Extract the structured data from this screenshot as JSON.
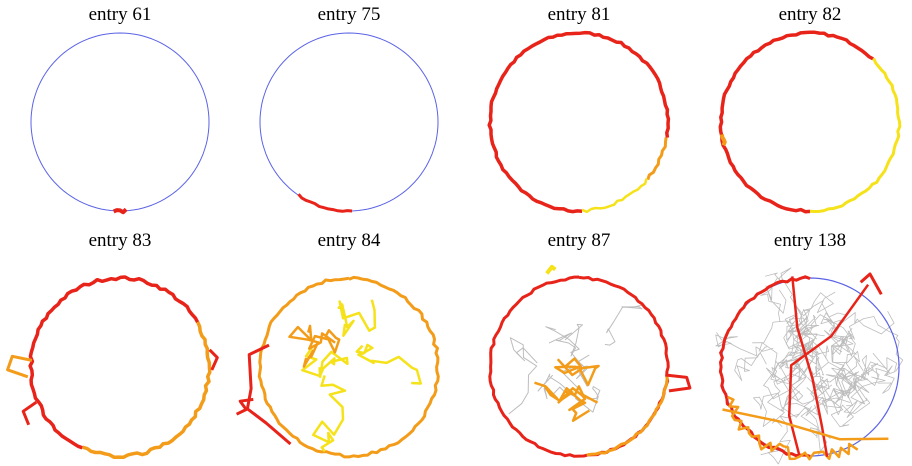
{
  "panels": [
    {
      "title": "entry 61"
    },
    {
      "title": "entry 75"
    },
    {
      "title": "entry 81"
    },
    {
      "title": "entry 82"
    },
    {
      "title": "entry 83"
    },
    {
      "title": "entry 84"
    },
    {
      "title": "entry 87"
    },
    {
      "title": "entry 138"
    }
  ]
}
